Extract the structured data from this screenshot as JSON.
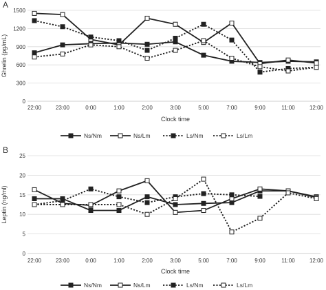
{
  "chart_data": [
    {
      "type": "line",
      "panel_label": "A",
      "categories": [
        "22:00",
        "23:00",
        "0:00",
        "1:00",
        "2:00",
        "3:00",
        "5:00",
        "7:00",
        "9:00",
        "11:00",
        "12:00"
      ],
      "ylabel": "Ghrelin (pg/mL)",
      "xlabel": "Clock time",
      "ylim": [
        0,
        1500
      ],
      "yticks": [
        0,
        300,
        600,
        900,
        1200,
        1500
      ],
      "grid": "horizontal",
      "legend_position": "bottom",
      "series": [
        {
          "name": "Ns/Nm",
          "style": "solid",
          "marker": "filled-square",
          "values": [
            800,
            930,
            950,
            960,
            940,
            980,
            760,
            660,
            640,
            660,
            650
          ]
        },
        {
          "name": "Ns/Lm",
          "style": "solid",
          "marker": "open-square",
          "values": [
            1450,
            1430,
            1020,
            930,
            1370,
            1270,
            970,
            1290,
            620,
            680,
            630
          ]
        },
        {
          "name": "Ls/Nm",
          "style": "dotted",
          "marker": "filled-square",
          "values": [
            1330,
            1230,
            1060,
            1000,
            840,
            1040,
            1270,
            1010,
            480,
            540,
            560
          ]
        },
        {
          "name": "Ls/Lm",
          "style": "dotted",
          "marker": "open-square",
          "values": [
            730,
            780,
            930,
            900,
            710,
            840,
            1000,
            710,
            570,
            500,
            560
          ]
        }
      ]
    },
    {
      "type": "line",
      "panel_label": "B",
      "categories": [
        "22:00",
        "23:00",
        "0:00",
        "1:00",
        "2:00",
        "3:00",
        "5:00",
        "7:00",
        "9:00",
        "11:00",
        "12:00"
      ],
      "ylabel": "Leptin (ng/ml)",
      "xlabel": "Clock time",
      "ylim": [
        0,
        25
      ],
      "yticks": [
        0,
        5,
        10,
        15,
        20,
        25
      ],
      "grid": "horizontal",
      "legend_position": "bottom",
      "series": [
        {
          "name": "Ns/Nm",
          "style": "solid",
          "marker": "filled-square",
          "values": [
            14,
            14,
            11,
            11,
            14.5,
            12.5,
            12.8,
            13,
            16,
            16,
            14.5
          ]
        },
        {
          "name": "Ns/Lm",
          "style": "solid",
          "marker": "open-square",
          "values": [
            16.3,
            12.8,
            12.3,
            16,
            18.6,
            10.5,
            11,
            14,
            16.5,
            16,
            14.3
          ]
        },
        {
          "name": "Ls/Nm",
          "style": "dotted",
          "marker": "filled-square",
          "values": [
            12.5,
            13.5,
            16.5,
            14.5,
            13,
            14.5,
            15.3,
            15,
            14.6,
            null,
            null
          ]
        },
        {
          "name": "Ls/Lm",
          "style": "dotted",
          "marker": "open-square",
          "values": [
            12.5,
            12.5,
            12.5,
            12.5,
            10,
            14,
            19,
            5.5,
            9,
            15.5,
            14
          ]
        }
      ]
    }
  ]
}
